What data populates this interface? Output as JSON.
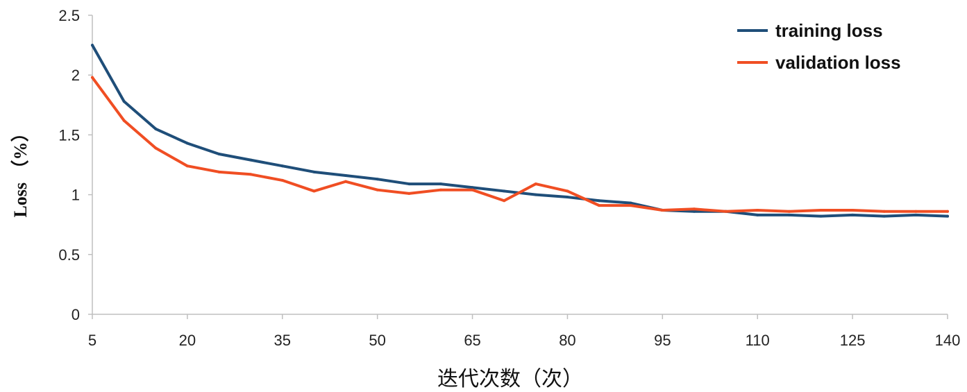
{
  "chart_data": {
    "type": "line",
    "xlabel": "迭代次数（次）",
    "ylabel": "Loss （%）",
    "x": [
      5,
      10,
      15,
      20,
      25,
      30,
      35,
      40,
      45,
      50,
      55,
      60,
      65,
      70,
      75,
      80,
      85,
      90,
      95,
      100,
      105,
      110,
      115,
      120,
      125,
      130,
      135,
      140
    ],
    "xlim": [
      5,
      140
    ],
    "ylim": [
      0,
      2.5
    ],
    "xticks": [
      "5",
      "20",
      "35",
      "50",
      "65",
      "80",
      "95",
      "110",
      "125",
      "140"
    ],
    "yticks": [
      "0",
      "0.5",
      "1",
      "1.5",
      "2",
      "2.5"
    ],
    "grid": false,
    "legend_position": "top-right",
    "series": [
      {
        "name": "training loss",
        "color": "#1f4e79",
        "values": [
          2.25,
          1.78,
          1.55,
          1.43,
          1.34,
          1.29,
          1.24,
          1.19,
          1.16,
          1.13,
          1.09,
          1.09,
          1.06,
          1.03,
          1.0,
          0.98,
          0.95,
          0.93,
          0.87,
          0.86,
          0.86,
          0.83,
          0.83,
          0.82,
          0.83,
          0.82,
          0.83,
          0.82
        ]
      },
      {
        "name": "validation loss",
        "color": "#f04e23",
        "values": [
          1.98,
          1.62,
          1.39,
          1.24,
          1.19,
          1.17,
          1.12,
          1.03,
          1.11,
          1.04,
          1.01,
          1.04,
          1.04,
          0.95,
          1.09,
          1.03,
          0.91,
          0.91,
          0.87,
          0.88,
          0.86,
          0.87,
          0.86,
          0.87,
          0.87,
          0.86,
          0.86,
          0.86
        ]
      }
    ]
  }
}
